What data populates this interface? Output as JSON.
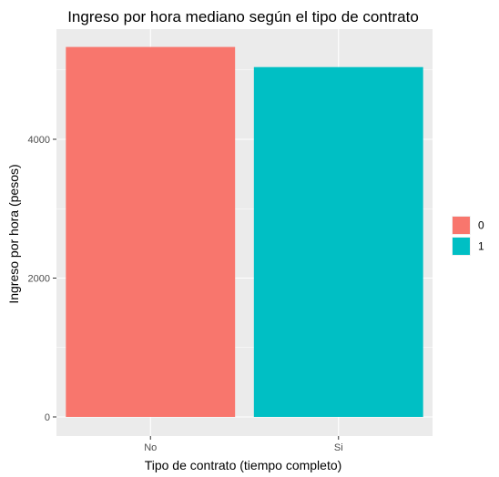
{
  "chart_data": {
    "type": "bar",
    "title": "Ingreso por hora mediano según el tipo de contrato",
    "xlabel": "Tipo de contrato (tiempo completo)",
    "ylabel": "Ingreso por hora (pesos)",
    "categories": [
      "No",
      "Si"
    ],
    "values": [
      5330,
      5040
    ],
    "fill_groups": [
      "0",
      "1"
    ],
    "colors": [
      "#F8766D",
      "#00BFC4"
    ],
    "ylim": [
      0,
      5600
    ],
    "yticks": [
      0,
      2000,
      4000
    ],
    "grid": true,
    "panel_background": "#EBEBEB",
    "legend": {
      "placement": "right",
      "entries": [
        {
          "label": "0",
          "color": "#F8766D"
        },
        {
          "label": "1",
          "color": "#00BFC4"
        }
      ]
    }
  }
}
